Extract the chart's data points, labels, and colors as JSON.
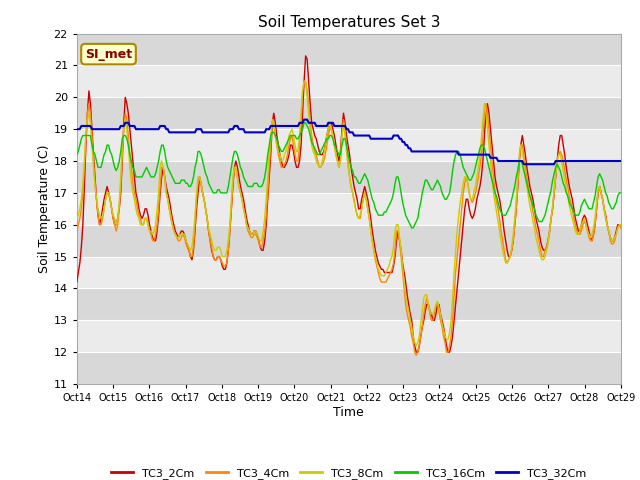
{
  "title": "Soil Temperatures Set 3",
  "xlabel": "Time",
  "ylabel": "Soil Temperature (C)",
  "ylim": [
    11.0,
    22.0
  ],
  "yticks": [
    11.0,
    12.0,
    13.0,
    14.0,
    15.0,
    16.0,
    17.0,
    18.0,
    19.0,
    20.0,
    21.0,
    22.0
  ],
  "xtick_labels": [
    "Oct 14",
    "Oct 15",
    "Oct 16",
    "Oct 17",
    "Oct 18",
    "Oct 19",
    "Oct 20",
    "Oct 21",
    "Oct 22",
    "Oct 23",
    "Oct 24",
    "Oct 25",
    "Oct 26",
    "Oct 27",
    "Oct 28",
    "Oct 29"
  ],
  "series_colors": {
    "TC3_2Cm": "#cc0000",
    "TC3_4Cm": "#ff8800",
    "TC3_8Cm": "#cccc00",
    "TC3_16Cm": "#00cc00",
    "TC3_32Cm": "#0000cc"
  },
  "legend_label": "SI_met",
  "plot_bg_light": "#ebebeb",
  "plot_bg_dark": "#d8d8d8",
  "grid_color": "#ffffff",
  "annotation_bg": "#ffffcc",
  "annotation_border": "#aa8800",
  "fig_bg": "#ffffff"
}
